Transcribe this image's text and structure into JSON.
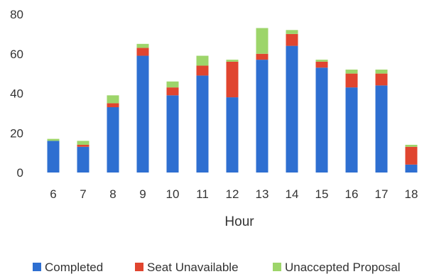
{
  "chart_data": {
    "type": "bar",
    "stacked": true,
    "title": "",
    "xlabel": "Hour",
    "ylabel": "",
    "categories": [
      "6",
      "7",
      "8",
      "9",
      "10",
      "11",
      "12",
      "13",
      "14",
      "15",
      "16",
      "17",
      "18"
    ],
    "ylim": [
      0,
      80
    ],
    "yticks": [
      0,
      20,
      40,
      60,
      80
    ],
    "grid": false,
    "legend_position": "bottom",
    "series": [
      {
        "name": "Completed",
        "color": "#2e6fd1",
        "values": [
          16,
          13,
          33,
          59,
          39,
          49,
          38,
          57,
          64,
          53,
          43,
          44,
          4
        ]
      },
      {
        "name": "Seat Unavailable",
        "color": "#e0452f",
        "values": [
          0,
          1,
          2,
          4,
          4,
          5,
          18,
          3,
          6,
          3,
          7,
          6,
          9
        ]
      },
      {
        "name": "Unaccepted Proposal",
        "color": "#9dd56a",
        "values": [
          1,
          2,
          4,
          2,
          3,
          5,
          1,
          13,
          2,
          1,
          2,
          2,
          1
        ]
      }
    ]
  }
}
